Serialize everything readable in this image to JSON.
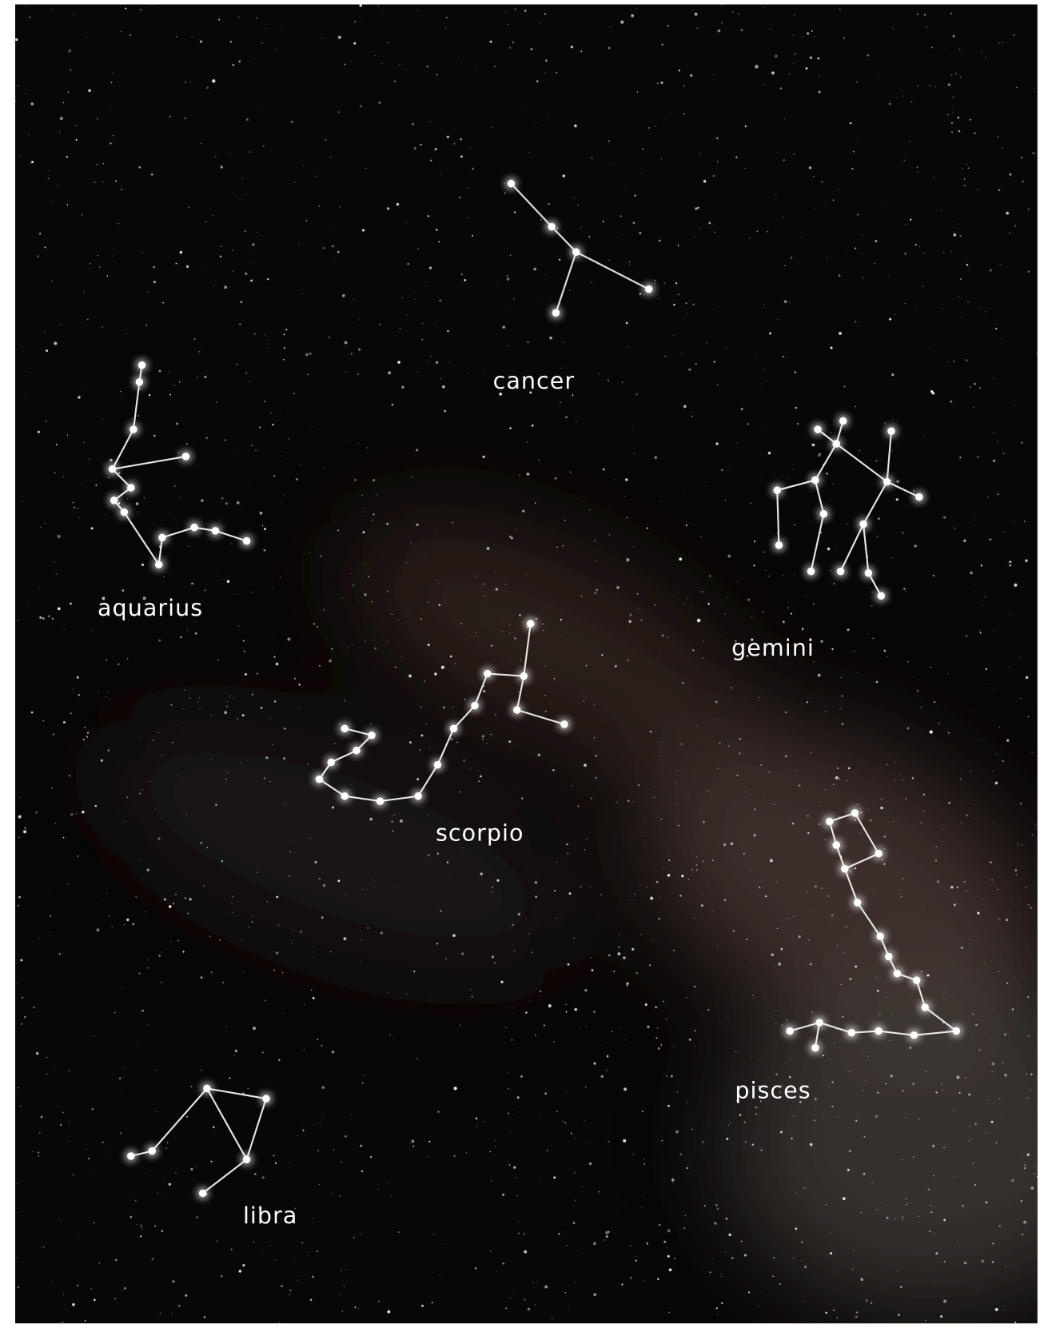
{
  "labels": [
    "cancer",
    "aquarius",
    "gemini",
    "scorpio",
    "pisces",
    "libra"
  ]
}
